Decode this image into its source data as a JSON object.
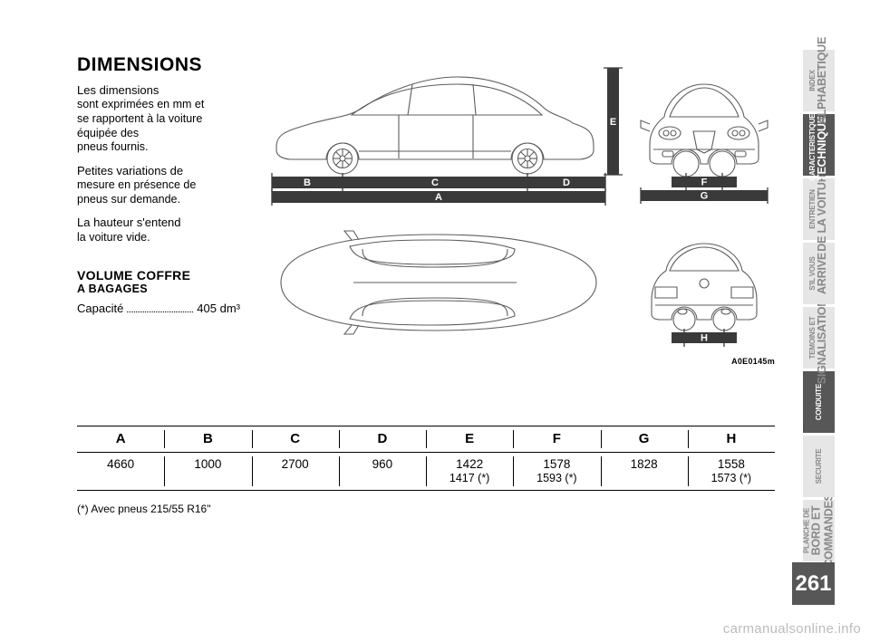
{
  "page_number": "261",
  "colors": {
    "page_bg": "#ffffff",
    "text": "#000000",
    "tab_inactive_bg": "#e6e6e6",
    "tab_inactive_text": "#888888",
    "tab_active_bg": "#575757",
    "tab_active_text": "#ffffff",
    "car_outline": "#5e5e5e",
    "dim_band": "#3a3a3a",
    "watermark": "#bcbcbc"
  },
  "tabs": [
    {
      "label": "PLANCHE DE\nBORD ET\nCOMMANDES",
      "active": false
    },
    {
      "label": "SECURITE",
      "active": false
    },
    {
      "label": "CONDUITE",
      "active": true
    },
    {
      "label": "TEMOINS ET\nSIGNALISATIONS",
      "active": false
    },
    {
      "label": "S'IL VOUS\nARRIVE",
      "active": false
    },
    {
      "label": "ENTRETIEN\nDE LA VOITURE",
      "active": false
    },
    {
      "label": "CARACTERISTIQUES\nTECHNIQUES",
      "active": true
    },
    {
      "label": "INDEX\nALPHABETIQUE",
      "active": false
    }
  ],
  "text": {
    "heading": "DIMENSIONS",
    "p1": "Les dimensions\nsont exprimées en mm et\nse rapportent à la voiture\néquipée des\npneus fournis.",
    "p2": "Petites variations de\nmesure en présence de\npneus sur demande.",
    "p3": "La hauteur s'entend\nla voiture vide.",
    "subheading": "VOLUME COFFRE\nA BAGAGES",
    "capacity_label": "Capacité",
    "capacity_value": "405",
    "capacity_unit": "dm³"
  },
  "figure": {
    "code": "A0E0145m",
    "letters": [
      "A",
      "B",
      "C",
      "D",
      "E",
      "F",
      "G",
      "H"
    ],
    "side": {
      "letter_A": "A",
      "letter_B": "B",
      "letter_C": "C",
      "letter_D": "D",
      "letter_E": "E",
      "band_color": "#3a3a3a"
    },
    "front": {
      "letter_F": "F",
      "letter_G": "G"
    },
    "rear": {
      "letter_H": "H"
    }
  },
  "dim_table": {
    "columns": [
      "A",
      "B",
      "C",
      "D",
      "E",
      "F",
      "G",
      "H"
    ],
    "values": [
      "4660",
      "1000",
      "2700",
      "960",
      "1422\n1417 (*)",
      "1578\n1593 (*)",
      "1828",
      "1558\n1573 (*)"
    ]
  },
  "footnote": "(*) Avec pneus 215/55 R16\"",
  "watermark": "carmanualsonline.info"
}
